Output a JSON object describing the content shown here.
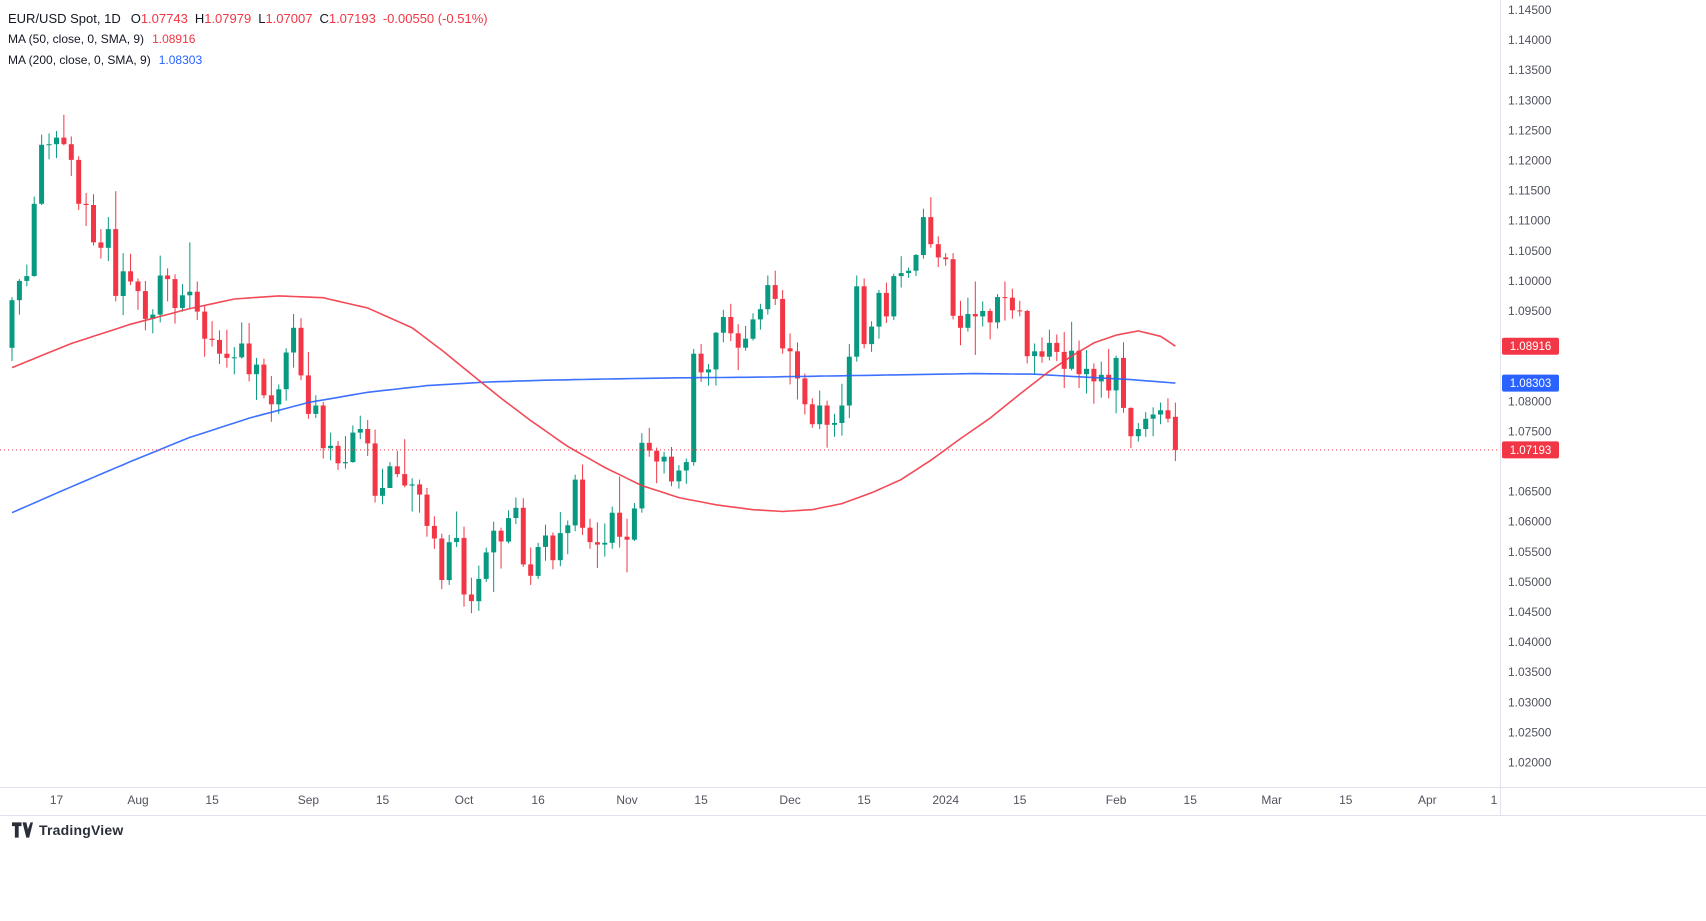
{
  "legend": {
    "title": "EUR/USD Spot, 1D",
    "ohlc": {
      "o_label": "O",
      "o_value": "1.07743",
      "h_label": "H",
      "h_value": "1.07979",
      "l_label": "L",
      "l_value": "1.07007",
      "c_label": "C",
      "c_value": "1.07193",
      "change": "-0.00550 (-0.51%)"
    },
    "ma50_label": "MA (50, close, 0, SMA, 9)",
    "ma50_value": "1.08916",
    "ma200_label": "MA (200, close, 0, SMA, 9)",
    "ma200_value": "1.08303"
  },
  "footer": {
    "brand": "TradingView"
  },
  "chart_data": {
    "type": "candlestick",
    "symbol": "EUR/USD Spot",
    "interval": "1D",
    "up_color": "#089981",
    "down_color": "#f23645",
    "ma50_color": "#f23645",
    "ma200_color": "#2962ff",
    "price_line": {
      "price": 1.07193,
      "color": "#f23645"
    },
    "y_axis": {
      "min": 1.02,
      "max": 1.145,
      "step": 0.005,
      "decimals": 5
    },
    "x_ticks": [
      {
        "i": 6,
        "label": "17"
      },
      {
        "i": 17,
        "label": "Aug"
      },
      {
        "i": 27,
        "label": "15"
      },
      {
        "i": 40,
        "label": "Sep"
      },
      {
        "i": 50,
        "label": "15"
      },
      {
        "i": 61,
        "label": "Oct"
      },
      {
        "i": 71,
        "label": "16"
      },
      {
        "i": 83,
        "label": "Nov"
      },
      {
        "i": 93,
        "label": "15"
      },
      {
        "i": 105,
        "label": "Dec"
      },
      {
        "i": 115,
        "label": "15"
      },
      {
        "i": 126,
        "label": "2024"
      },
      {
        "i": 136,
        "label": "15"
      },
      {
        "i": 149,
        "label": "Feb"
      },
      {
        "i": 159,
        "label": "15"
      },
      {
        "i": 170,
        "label": "Mar"
      },
      {
        "i": 180,
        "label": "15"
      },
      {
        "i": 191,
        "label": "Apr"
      },
      {
        "i": 200,
        "label": "1"
      }
    ],
    "badges": [
      {
        "label": "1.08916",
        "price": 1.08916,
        "color": "#f23645"
      },
      {
        "label": "1.08303",
        "price": 1.08303,
        "color": "#2962ff"
      },
      {
        "label": "1.07193",
        "price": 1.07193,
        "color": "#f23645"
      }
    ],
    "ma50_points": [
      [
        0,
        1.0856
      ],
      [
        8,
        1.0896
      ],
      [
        16,
        1.0928
      ],
      [
        24,
        1.0954
      ],
      [
        30,
        1.097
      ],
      [
        36,
        1.0975
      ],
      [
        42,
        1.0972
      ],
      [
        48,
        1.0955
      ],
      [
        54,
        1.0922
      ],
      [
        58,
        1.0885
      ],
      [
        62,
        1.0845
      ],
      [
        66,
        1.0805
      ],
      [
        70,
        1.0768
      ],
      [
        75,
        1.0725
      ],
      [
        80,
        1.069
      ],
      [
        85,
        1.066
      ],
      [
        90,
        1.064
      ],
      [
        95,
        1.0628
      ],
      [
        100,
        1.062
      ],
      [
        104,
        1.0617
      ],
      [
        108,
        1.062
      ],
      [
        112,
        1.063
      ],
      [
        116,
        1.0648
      ],
      [
        120,
        1.067
      ],
      [
        124,
        1.0702
      ],
      [
        128,
        1.0738
      ],
      [
        132,
        1.0772
      ],
      [
        136,
        1.0812
      ],
      [
        140,
        1.085
      ],
      [
        143,
        1.0875
      ],
      [
        146,
        1.0897
      ],
      [
        149,
        1.091
      ],
      [
        152,
        1.0917
      ],
      [
        155,
        1.0908
      ],
      [
        157,
        1.08916
      ]
    ],
    "ma200_points": [
      [
        0,
        1.0615
      ],
      [
        8,
        1.0658
      ],
      [
        16,
        1.07
      ],
      [
        24,
        1.074
      ],
      [
        32,
        1.0772
      ],
      [
        40,
        1.0798
      ],
      [
        48,
        1.0815
      ],
      [
        56,
        1.0826
      ],
      [
        64,
        1.0832
      ],
      [
        72,
        1.0835
      ],
      [
        80,
        1.0837
      ],
      [
        90,
        1.0839
      ],
      [
        100,
        1.084
      ],
      [
        110,
        1.0842
      ],
      [
        120,
        1.0844
      ],
      [
        130,
        1.0846
      ],
      [
        138,
        1.0845
      ],
      [
        145,
        1.084
      ],
      [
        151,
        1.0836
      ],
      [
        157,
        1.08303
      ]
    ],
    "candles": [
      [
        1.0889,
        1.0973,
        1.0867,
        1.0968
      ],
      [
        1.0968,
        1.1003,
        1.0944,
        1.1
      ],
      [
        1.1,
        1.1027,
        1.0991,
        1.1008
      ],
      [
        1.1008,
        1.114,
        1.1007,
        1.1128
      ],
      [
        1.1128,
        1.1243,
        1.1126,
        1.1226
      ],
      [
        1.1226,
        1.1245,
        1.1202,
        1.1227
      ],
      [
        1.1227,
        1.1249,
        1.1204,
        1.1238
      ],
      [
        1.1238,
        1.1276,
        1.1225,
        1.1227
      ],
      [
        1.1227,
        1.124,
        1.1174,
        1.1201
      ],
      [
        1.1201,
        1.1207,
        1.1118,
        1.1128
      ],
      [
        1.1128,
        1.1146,
        1.1091,
        1.1126
      ],
      [
        1.1126,
        1.1144,
        1.1059,
        1.1064
      ],
      [
        1.1064,
        1.1086,
        1.1037,
        1.1055
      ],
      [
        1.1055,
        1.1106,
        1.1033,
        1.1086
      ],
      [
        1.1086,
        1.1149,
        1.0966,
        1.0975
      ],
      [
        1.0975,
        1.1046,
        1.0943,
        1.1016
      ],
      [
        1.1016,
        1.1045,
        1.0993,
        1.0999
      ],
      [
        1.0999,
        1.1004,
        1.0952,
        1.0983
      ],
      [
        1.0983,
        1.1,
        1.0918,
        1.0937
      ],
      [
        1.0937,
        1.0953,
        1.0913,
        1.0944
      ],
      [
        1.0944,
        1.1042,
        1.0931,
        1.1009
      ],
      [
        1.1009,
        1.1021,
        1.0966,
        1.1003
      ],
      [
        1.1003,
        1.1011,
        1.0929,
        1.0955
      ],
      [
        1.0955,
        1.0995,
        1.0949,
        1.0976
      ],
      [
        1.0976,
        1.1064,
        1.0955,
        1.0982
      ],
      [
        1.0982,
        1.0999,
        1.0935,
        1.0949
      ],
      [
        1.0949,
        1.0959,
        1.0874,
        1.0904
      ],
      [
        1.0904,
        1.0933,
        1.0891,
        1.0902
      ],
      [
        1.0902,
        1.0918,
        1.0862,
        1.0879
      ],
      [
        1.0879,
        1.0919,
        1.0856,
        1.0872
      ],
      [
        1.0872,
        1.089,
        1.0845,
        1.0873
      ],
      [
        1.0873,
        1.0931,
        1.0871,
        1.0896
      ],
      [
        1.0896,
        1.093,
        1.0833,
        1.0845
      ],
      [
        1.0845,
        1.0872,
        1.0802,
        1.0861
      ],
      [
        1.0861,
        1.0871,
        1.0805,
        1.081
      ],
      [
        1.081,
        1.0842,
        1.0766,
        1.0795
      ],
      [
        1.0795,
        1.0828,
        1.0779,
        1.082
      ],
      [
        1.082,
        1.0888,
        1.0801,
        1.0881
      ],
      [
        1.0881,
        1.0945,
        1.0856,
        1.0922
      ],
      [
        1.0922,
        1.0938,
        1.0835,
        1.0843
      ],
      [
        1.0843,
        1.0882,
        1.0771,
        1.0779
      ],
      [
        1.0779,
        1.081,
        1.0772,
        1.0793
      ],
      [
        1.0793,
        1.0799,
        1.0705,
        1.0722
      ],
      [
        1.0722,
        1.0748,
        1.0702,
        1.0726
      ],
      [
        1.0726,
        1.0734,
        1.0686,
        1.0697
      ],
      [
        1.0697,
        1.0742,
        1.0688,
        1.0699
      ],
      [
        1.0699,
        1.076,
        1.0698,
        1.0748
      ],
      [
        1.0748,
        1.0776,
        1.0737,
        1.0754
      ],
      [
        1.0754,
        1.0769,
        1.0709,
        1.073
      ],
      [
        1.073,
        1.0753,
        1.0632,
        1.0643
      ],
      [
        1.0643,
        1.0688,
        1.0629,
        1.0656
      ],
      [
        1.0656,
        1.0699,
        1.0656,
        1.0692
      ],
      [
        1.0692,
        1.0718,
        1.0674,
        1.0679
      ],
      [
        1.0679,
        1.0737,
        1.0657,
        1.066
      ],
      [
        1.066,
        1.0672,
        1.0617,
        1.0662
      ],
      [
        1.0662,
        1.067,
        1.0615,
        1.0645
      ],
      [
        1.0645,
        1.0656,
        1.0575,
        1.0593
      ],
      [
        1.0593,
        1.0609,
        1.0555,
        1.0572
      ],
      [
        1.0572,
        1.058,
        1.0488,
        1.0503
      ],
      [
        1.0503,
        1.0578,
        1.0495,
        1.0566
      ],
      [
        1.0566,
        1.0617,
        1.0558,
        1.0573
      ],
      [
        1.0573,
        1.0592,
        1.0459,
        1.0479
      ],
      [
        1.0479,
        1.0507,
        1.0448,
        1.0468
      ],
      [
        1.0468,
        1.0527,
        1.0452,
        1.0505
      ],
      [
        1.0505,
        1.0557,
        1.05,
        1.0549
      ],
      [
        1.0549,
        1.06,
        1.0483,
        1.0585
      ],
      [
        1.0585,
        1.059,
        1.0522,
        1.0567
      ],
      [
        1.0567,
        1.0619,
        1.0564,
        1.0606
      ],
      [
        1.0606,
        1.064,
        1.0596,
        1.0623
      ],
      [
        1.0623,
        1.0639,
        1.0525,
        1.0529
      ],
      [
        1.0529,
        1.0557,
        1.0495,
        1.051
      ],
      [
        1.051,
        1.0565,
        1.0505,
        1.0558
      ],
      [
        1.0558,
        1.0595,
        1.0535,
        1.0577
      ],
      [
        1.0577,
        1.0582,
        1.0521,
        1.0536
      ],
      [
        1.0536,
        1.0616,
        1.0526,
        1.0581
      ],
      [
        1.0581,
        1.0602,
        1.0546,
        1.0594
      ],
      [
        1.0594,
        1.0678,
        1.0584,
        1.067
      ],
      [
        1.067,
        1.0695,
        1.0578,
        1.059
      ],
      [
        1.059,
        1.0605,
        1.0555,
        1.0566
      ],
      [
        1.0566,
        1.0599,
        1.0523,
        1.0562
      ],
      [
        1.0562,
        1.0597,
        1.0542,
        1.0565
      ],
      [
        1.0565,
        1.0625,
        1.0555,
        1.0615
      ],
      [
        1.0615,
        1.0675,
        1.0557,
        1.0575
      ],
      [
        1.0575,
        1.0605,
        1.0516,
        1.057
      ],
      [
        1.057,
        1.0631,
        1.0568,
        1.0622
      ],
      [
        1.0622,
        1.0747,
        1.0615,
        1.0731
      ],
      [
        1.0731,
        1.0756,
        1.0708,
        1.0718
      ],
      [
        1.0718,
        1.0723,
        1.0664,
        1.07
      ],
      [
        1.07,
        1.0716,
        1.068,
        1.0708
      ],
      [
        1.0708,
        1.0724,
        1.0659,
        1.0667
      ],
      [
        1.0667,
        1.0694,
        1.0655,
        1.0685
      ],
      [
        1.0685,
        1.0705,
        1.0663,
        1.0699
      ],
      [
        1.0699,
        1.0887,
        1.0693,
        1.0879
      ],
      [
        1.0879,
        1.0895,
        1.0832,
        1.0848
      ],
      [
        1.0848,
        1.0862,
        1.0826,
        1.0853
      ],
      [
        1.0853,
        1.0915,
        1.0826,
        1.0914
      ],
      [
        1.0914,
        1.0952,
        1.0898,
        1.094
      ],
      [
        1.094,
        1.0962,
        1.09,
        1.0913
      ],
      [
        1.0913,
        1.0928,
        1.0852,
        1.0889
      ],
      [
        1.0889,
        1.0925,
        1.0884,
        1.0904
      ],
      [
        1.0904,
        1.0946,
        1.0901,
        1.0936
      ],
      [
        1.0936,
        1.0962,
        1.0919,
        1.0953
      ],
      [
        1.0953,
        1.1009,
        1.0944,
        1.0993
      ],
      [
        1.0993,
        1.1017,
        1.096,
        1.097
      ],
      [
        1.097,
        1.0985,
        1.0879,
        1.0888
      ],
      [
        1.0888,
        1.0913,
        1.0828,
        1.0883
      ],
      [
        1.0883,
        1.0898,
        1.0803,
        1.0838
      ],
      [
        1.0838,
        1.0846,
        1.0778,
        1.0795
      ],
      [
        1.0795,
        1.0805,
        1.0756,
        1.0762
      ],
      [
        1.0762,
        1.0818,
        1.0754,
        1.0793
      ],
      [
        1.0793,
        1.0801,
        1.0723,
        1.0761
      ],
      [
        1.0761,
        1.0779,
        1.0741,
        1.0764
      ],
      [
        1.0764,
        1.0829,
        1.0743,
        1.0793
      ],
      [
        1.0793,
        1.0895,
        1.0772,
        1.0874
      ],
      [
        1.0874,
        1.1009,
        1.0866,
        1.0991
      ],
      [
        1.0991,
        1.1004,
        1.0888,
        1.0895
      ],
      [
        1.0895,
        1.0933,
        1.0882,
        1.0924
      ],
      [
        1.0924,
        1.0985,
        1.0904,
        1.098
      ],
      [
        1.098,
        1.0997,
        1.093,
        1.0941
      ],
      [
        1.0941,
        1.1012,
        1.0935,
        1.1008
      ],
      [
        1.1008,
        1.1041,
        1.0989,
        1.1013
      ],
      [
        1.1013,
        1.1022,
        1.1005,
        1.1017
      ],
      [
        1.1017,
        1.1045,
        1.1008,
        1.1043
      ],
      [
        1.1043,
        1.112,
        1.1037,
        1.1106
      ],
      [
        1.1106,
        1.1139,
        1.1055,
        1.1061
      ],
      [
        1.1061,
        1.1074,
        1.1023,
        1.1039
      ],
      [
        1.1039,
        1.1046,
        1.1025,
        1.1036
      ],
      [
        1.1036,
        1.1046,
        1.0936,
        1.0942
      ],
      [
        1.0942,
        1.0967,
        1.0893,
        1.0922
      ],
      [
        1.0922,
        1.0972,
        1.0916,
        1.0945
      ],
      [
        1.0945,
        1.0999,
        1.0877,
        1.0941
      ],
      [
        1.0941,
        1.0966,
        1.0924,
        1.095
      ],
      [
        1.095,
        1.0954,
        1.0903,
        1.0931
      ],
      [
        1.0931,
        1.0978,
        1.0921,
        1.0973
      ],
      [
        1.0973,
        1.0999,
        1.0934,
        1.0972
      ],
      [
        1.0972,
        1.0987,
        1.0937,
        1.0951
      ],
      [
        1.0951,
        1.0967,
        1.0941,
        1.095
      ],
      [
        1.095,
        1.0952,
        1.0863,
        1.0875
      ],
      [
        1.0875,
        1.0896,
        1.0845,
        1.0883
      ],
      [
        1.0883,
        1.0906,
        1.0864,
        1.0874
      ],
      [
        1.0874,
        1.0919,
        1.0868,
        1.0897
      ],
      [
        1.0897,
        1.0911,
        1.0867,
        1.0882
      ],
      [
        1.0882,
        1.0915,
        1.0822,
        1.0854
      ],
      [
        1.0854,
        1.0932,
        1.0851,
        1.0884
      ],
      [
        1.0884,
        1.0901,
        1.0822,
        1.0845
      ],
      [
        1.0845,
        1.0885,
        1.0813,
        1.0854
      ],
      [
        1.0854,
        1.0863,
        1.0796,
        1.0833
      ],
      [
        1.0833,
        1.0866,
        1.0806,
        1.0844
      ],
      [
        1.0844,
        1.0887,
        1.0805,
        1.0818
      ],
      [
        1.0818,
        1.0876,
        1.078,
        1.0872
      ],
      [
        1.0872,
        1.0898,
        1.0781,
        1.0789
      ],
      [
        1.0789,
        1.079,
        1.0722,
        1.0742
      ],
      [
        1.0742,
        1.0764,
        1.0733,
        1.0754
      ],
      [
        1.0754,
        1.0782,
        1.0741,
        1.0771
      ],
      [
        1.0771,
        1.079,
        1.0742,
        1.0778
      ],
      [
        1.0778,
        1.0798,
        1.0762,
        1.0785
      ],
      [
        1.0785,
        1.0805,
        1.0765,
        1.0771
      ],
      [
        1.07743,
        1.07979,
        1.07007,
        1.07193
      ]
    ]
  }
}
